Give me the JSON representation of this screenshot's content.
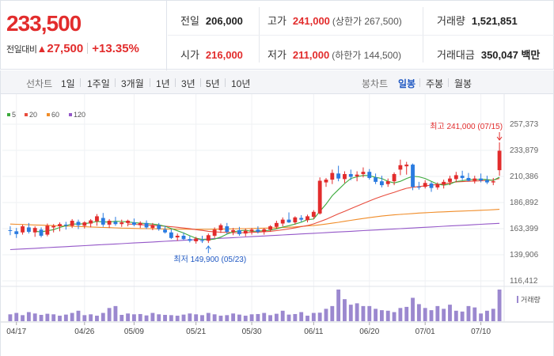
{
  "quote": {
    "current_price": "233,500",
    "change_label": "전일대비",
    "change_arrow": "▲",
    "change_amount": "27,500",
    "change_percent": "+13.35%"
  },
  "stats": {
    "prev_close": {
      "label": "전일",
      "value": "206,000"
    },
    "high": {
      "label": "고가",
      "value": "241,000",
      "sub": "(상한가 267,500)"
    },
    "volume": {
      "label": "거래량",
      "value": "1,521,851"
    },
    "open": {
      "label": "시가",
      "value": "216,000"
    },
    "low": {
      "label": "저가",
      "value": "211,000",
      "sub": "(하한가 144,500)"
    },
    "trade_amount": {
      "label": "거래대금",
      "value": "350,047 백만"
    }
  },
  "toolbar": {
    "line_label": "선차트",
    "line_periods": [
      "1일",
      "1주일",
      "3개월",
      "1년",
      "3년",
      "5년",
      "10년"
    ],
    "candle_label": "봉차트",
    "candle_periods": [
      "일봉",
      "주봉",
      "월봉"
    ],
    "active_candle": "일봉"
  },
  "colors": {
    "up": "#e22c2c",
    "down": "#2a7be0",
    "ma5": "#3caa3c",
    "ma20": "#e84c3d",
    "ma60": "#f08c28",
    "ma120": "#9457c8",
    "volume": "#9b88cf"
  },
  "chart_data": {
    "type": "candlestick",
    "title": "",
    "legend": [
      {
        "name": "5",
        "color_key": "ma5"
      },
      {
        "name": "20",
        "color_key": "ma20"
      },
      {
        "name": "60",
        "color_key": "ma60"
      },
      {
        "name": "120",
        "color_key": "ma120"
      }
    ],
    "y_ticks": [
      "257,373",
      "233,879",
      "210,386",
      "186,892",
      "163,399",
      "139,906",
      "116,412"
    ],
    "ylim": [
      116412,
      257373
    ],
    "x_ticks": [
      {
        "label": "04/17",
        "index": 1
      },
      {
        "label": "04/26",
        "index": 12
      },
      {
        "label": "05/09",
        "index": 20
      },
      {
        "label": "05/21",
        "index": 30
      },
      {
        "label": "05/30",
        "index": 39
      },
      {
        "label": "06/11",
        "index": 49
      },
      {
        "label": "06/20",
        "index": 58
      },
      {
        "label": "07/01",
        "index": 67
      },
      {
        "label": "07/10",
        "index": 76
      }
    ],
    "annotations": {
      "high": {
        "label": "최고 241,000 (07/15)",
        "index": 79,
        "value": 241000
      },
      "low": {
        "label": "최저 149,900 (05/23)",
        "index": 32,
        "value": 149900
      }
    },
    "volume_label": "거래량",
    "candles": [
      {
        "o": 162000,
        "h": 165500,
        "l": 157500,
        "c": 161500
      },
      {
        "o": 161000,
        "h": 164000,
        "l": 155000,
        "c": 158500
      },
      {
        "o": 160000,
        "h": 167000,
        "l": 158000,
        "c": 165500
      },
      {
        "o": 164500,
        "h": 168500,
        "l": 159000,
        "c": 160500
      },
      {
        "o": 160000,
        "h": 165500,
        "l": 156000,
        "c": 164000
      },
      {
        "o": 162500,
        "h": 164500,
        "l": 155500,
        "c": 157000
      },
      {
        "o": 158000,
        "h": 168000,
        "l": 156500,
        "c": 166000
      },
      {
        "o": 164500,
        "h": 167500,
        "l": 160000,
        "c": 165800
      },
      {
        "o": 165500,
        "h": 169000,
        "l": 161000,
        "c": 167500
      },
      {
        "o": 167000,
        "h": 169500,
        "l": 162500,
        "c": 166200
      },
      {
        "o": 166000,
        "h": 172000,
        "l": 164000,
        "c": 170500
      },
      {
        "o": 169500,
        "h": 171500,
        "l": 163000,
        "c": 166500
      },
      {
        "o": 166000,
        "h": 170000,
        "l": 163500,
        "c": 169000
      },
      {
        "o": 168000,
        "h": 172000,
        "l": 164500,
        "c": 170800
      },
      {
        "o": 170000,
        "h": 176500,
        "l": 166000,
        "c": 174500
      },
      {
        "o": 173000,
        "h": 177500,
        "l": 165000,
        "c": 167000
      },
      {
        "o": 167000,
        "h": 172000,
        "l": 164000,
        "c": 170500
      },
      {
        "o": 169500,
        "h": 174000,
        "l": 166000,
        "c": 167500
      },
      {
        "o": 167500,
        "h": 171500,
        "l": 165000,
        "c": 169000
      },
      {
        "o": 168500,
        "h": 171500,
        "l": 165500,
        "c": 170500
      },
      {
        "o": 169000,
        "h": 172500,
        "l": 165500,
        "c": 166800
      },
      {
        "o": 166500,
        "h": 170000,
        "l": 164000,
        "c": 168500
      },
      {
        "o": 168500,
        "h": 170800,
        "l": 163000,
        "c": 164500
      },
      {
        "o": 164000,
        "h": 168500,
        "l": 162000,
        "c": 166500
      },
      {
        "o": 166500,
        "h": 168500,
        "l": 161500,
        "c": 163000
      },
      {
        "o": 162500,
        "h": 166000,
        "l": 159000,
        "c": 160000
      },
      {
        "o": 160000,
        "h": 163000,
        "l": 154000,
        "c": 155000
      },
      {
        "o": 155500,
        "h": 159000,
        "l": 152500,
        "c": 157000
      },
      {
        "o": 157000,
        "h": 160000,
        "l": 153000,
        "c": 154000
      },
      {
        "o": 154000,
        "h": 157000,
        "l": 151000,
        "c": 152500
      },
      {
        "o": 152000,
        "h": 156000,
        "l": 149900,
        "c": 154500
      },
      {
        "o": 153000,
        "h": 157000,
        "l": 150500,
        "c": 152200
      },
      {
        "o": 152500,
        "h": 159000,
        "l": 150500,
        "c": 157500
      },
      {
        "o": 157000,
        "h": 164500,
        "l": 155000,
        "c": 162500
      },
      {
        "o": 162000,
        "h": 168000,
        "l": 159500,
        "c": 166500
      },
      {
        "o": 165500,
        "h": 168500,
        "l": 158500,
        "c": 160500
      },
      {
        "o": 160500,
        "h": 164000,
        "l": 157500,
        "c": 162000
      },
      {
        "o": 162000,
        "h": 165000,
        "l": 157000,
        "c": 158500
      },
      {
        "o": 159000,
        "h": 163500,
        "l": 156500,
        "c": 161500
      },
      {
        "o": 161000,
        "h": 164000,
        "l": 158000,
        "c": 162500
      },
      {
        "o": 162500,
        "h": 165500,
        "l": 159000,
        "c": 160500
      },
      {
        "o": 160500,
        "h": 164000,
        "l": 158000,
        "c": 162800
      },
      {
        "o": 162500,
        "h": 166500,
        "l": 160500,
        "c": 165500
      },
      {
        "o": 165000,
        "h": 170500,
        "l": 163000,
        "c": 168500
      },
      {
        "o": 168000,
        "h": 173500,
        "l": 165500,
        "c": 171500
      },
      {
        "o": 171500,
        "h": 178000,
        "l": 168500,
        "c": 169000
      },
      {
        "o": 169000,
        "h": 174500,
        "l": 167000,
        "c": 173500
      },
      {
        "o": 173000,
        "h": 175500,
        "l": 169500,
        "c": 171500
      },
      {
        "o": 171000,
        "h": 176000,
        "l": 169000,
        "c": 174500
      },
      {
        "o": 174000,
        "h": 180000,
        "l": 172000,
        "c": 178500
      },
      {
        "o": 177000,
        "h": 209500,
        "l": 176000,
        "c": 206500
      },
      {
        "o": 205000,
        "h": 209000,
        "l": 201000,
        "c": 207500
      },
      {
        "o": 207500,
        "h": 216500,
        "l": 203500,
        "c": 213500
      },
      {
        "o": 213000,
        "h": 220000,
        "l": 206000,
        "c": 208500
      },
      {
        "o": 208000,
        "h": 215000,
        "l": 204500,
        "c": 212500
      },
      {
        "o": 212500,
        "h": 216500,
        "l": 207000,
        "c": 210000
      },
      {
        "o": 210500,
        "h": 215000,
        "l": 206000,
        "c": 212000
      },
      {
        "o": 212500,
        "h": 218500,
        "l": 209500,
        "c": 214500
      },
      {
        "o": 214500,
        "h": 217000,
        "l": 207500,
        "c": 209000
      },
      {
        "o": 209500,
        "h": 213000,
        "l": 203500,
        "c": 205500
      },
      {
        "o": 206000,
        "h": 211000,
        "l": 200500,
        "c": 202500
      },
      {
        "o": 203500,
        "h": 208500,
        "l": 201000,
        "c": 206000
      },
      {
        "o": 206000,
        "h": 214000,
        "l": 202500,
        "c": 212500
      },
      {
        "o": 216500,
        "h": 225500,
        "l": 211500,
        "c": 220500
      },
      {
        "o": 219500,
        "h": 223500,
        "l": 212000,
        "c": 221000
      },
      {
        "o": 221000,
        "h": 222000,
        "l": 198000,
        "c": 201000
      },
      {
        "o": 201000,
        "h": 205500,
        "l": 198500,
        "c": 200500
      },
      {
        "o": 201000,
        "h": 207000,
        "l": 199500,
        "c": 204500
      },
      {
        "o": 204000,
        "h": 205500,
        "l": 196500,
        "c": 200000
      },
      {
        "o": 200500,
        "h": 205000,
        "l": 198500,
        "c": 203500
      },
      {
        "o": 203000,
        "h": 207500,
        "l": 199500,
        "c": 205500
      },
      {
        "o": 205500,
        "h": 211000,
        "l": 202500,
        "c": 208500
      },
      {
        "o": 208000,
        "h": 214500,
        "l": 205000,
        "c": 211500
      },
      {
        "o": 211000,
        "h": 215500,
        "l": 207000,
        "c": 209000
      },
      {
        "o": 209000,
        "h": 213500,
        "l": 206000,
        "c": 206500
      },
      {
        "o": 206500,
        "h": 211000,
        "l": 204000,
        "c": 208500
      },
      {
        "o": 208500,
        "h": 213000,
        "l": 205000,
        "c": 206800
      },
      {
        "o": 207000,
        "h": 211000,
        "l": 203500,
        "c": 205000
      },
      {
        "o": 205000,
        "h": 209000,
        "l": 202500,
        "c": 206000
      },
      {
        "o": 216000,
        "h": 241000,
        "l": 211000,
        "c": 233500
      }
    ],
    "volumes": [
      25,
      30,
      22,
      33,
      28,
      23,
      27,
      25,
      20,
      24,
      30,
      38,
      22,
      25,
      20,
      30,
      48,
      55,
      23,
      28,
      25,
      26,
      21,
      30,
      25,
      23,
      22,
      20,
      24,
      28,
      25,
      22,
      30,
      25,
      20,
      22,
      28,
      24,
      20,
      25,
      26,
      30,
      22,
      27,
      38,
      24,
      26,
      33,
      20,
      30,
      31,
      45,
      55,
      115,
      80,
      60,
      65,
      55,
      55,
      45,
      40,
      38,
      33,
      48,
      52,
      85,
      62,
      48,
      40,
      55,
      45,
      60,
      38,
      35,
      55,
      50,
      28,
      38,
      45,
      115
    ],
    "ma": {
      "ma5": [
        null,
        null,
        null,
        null,
        161000,
        160500,
        161500,
        162500,
        164500,
        166000,
        167500,
        167500,
        167800,
        168800,
        169800,
        169500,
        169300,
        170000,
        169800,
        169500,
        168800,
        168300,
        168000,
        167500,
        166800,
        165500,
        163500,
        161500,
        159500,
        157000,
        154800,
        153700,
        153300,
        154000,
        155800,
        158500,
        160500,
        161500,
        162000,
        161000,
        161200,
        161500,
        162000,
        163200,
        164800,
        166000,
        167500,
        169200,
        171500,
        172000,
        179000,
        185500,
        193000,
        198500,
        204000,
        208500,
        210000,
        211300,
        211000,
        209500,
        208500,
        206000,
        204500,
        206000,
        208500,
        210500,
        210000,
        208500,
        206000,
        203500,
        202500,
        203500,
        205800,
        206500,
        207500,
        207500,
        207800,
        207600,
        206800,
        209700
      ],
      "ma20": [
        null,
        null,
        null,
        null,
        null,
        null,
        null,
        null,
        null,
        null,
        null,
        null,
        null,
        null,
        null,
        null,
        null,
        null,
        null,
        167500,
        167300,
        167000,
        166700,
        166400,
        166000,
        165600,
        165100,
        164600,
        164000,
        163300,
        162500,
        161800,
        161000,
        160500,
        160200,
        160000,
        159800,
        159700,
        159800,
        160100,
        160300,
        160600,
        161000,
        161600,
        162300,
        163200,
        164200,
        165200,
        166200,
        167700,
        169700,
        171800,
        174300,
        176800,
        179000,
        181400,
        183700,
        186000,
        188300,
        190500,
        192500,
        194400,
        196100,
        198000,
        199700,
        200600,
        201300,
        201900,
        202500,
        203100,
        203800,
        204600,
        205400,
        205700,
        206000,
        206200,
        206500,
        206800,
        207100,
        208500
      ],
      "ma60": [
        167500,
        167300,
        167100,
        166900,
        166700,
        166500,
        166300,
        166100,
        165900,
        165700,
        165500,
        165300,
        165100,
        164900,
        164700,
        164500,
        164300,
        164100,
        163900,
        163800,
        163600,
        163500,
        163400,
        163300,
        163200,
        163100,
        163000,
        162950,
        162900,
        162850,
        162800,
        162800,
        162850,
        162900,
        163000,
        163100,
        163200,
        163300,
        163400,
        163550,
        163700,
        163850,
        164000,
        164200,
        164400,
        164700,
        165000,
        165400,
        165800,
        166200,
        166800,
        167500,
        168300,
        169100,
        170000,
        170900,
        171700,
        172500,
        173300,
        174000,
        174700,
        175300,
        175800,
        176200,
        176600,
        177000,
        177400,
        177700,
        178000,
        178300,
        178500,
        178800,
        179000,
        179200,
        179400,
        179600,
        179900,
        180100,
        180400,
        180800
      ],
      "ma120": [
        144500,
        144800,
        145100,
        145400,
        145700,
        146000,
        146300,
        146600,
        146900,
        147200,
        147500,
        147800,
        148100,
        148400,
        148700,
        149000,
        149300,
        149600,
        149900,
        150200,
        150500,
        150800,
        151100,
        151400,
        151700,
        152000,
        152300,
        152600,
        152900,
        153200,
        153500,
        153800,
        154100,
        154400,
        154700,
        155000,
        155300,
        155600,
        155900,
        156200,
        156500,
        156800,
        157100,
        157400,
        157700,
        158000,
        158300,
        158600,
        158900,
        159200,
        159500,
        159800,
        160100,
        160400,
        160700,
        161000,
        161300,
        161600,
        161900,
        162200,
        162500,
        162800,
        163100,
        163400,
        163700,
        164000,
        164300,
        164600,
        164900,
        165200,
        165500,
        165800,
        166100,
        166400,
        166700,
        167000,
        167300,
        167600,
        167900,
        168200
      ]
    }
  }
}
